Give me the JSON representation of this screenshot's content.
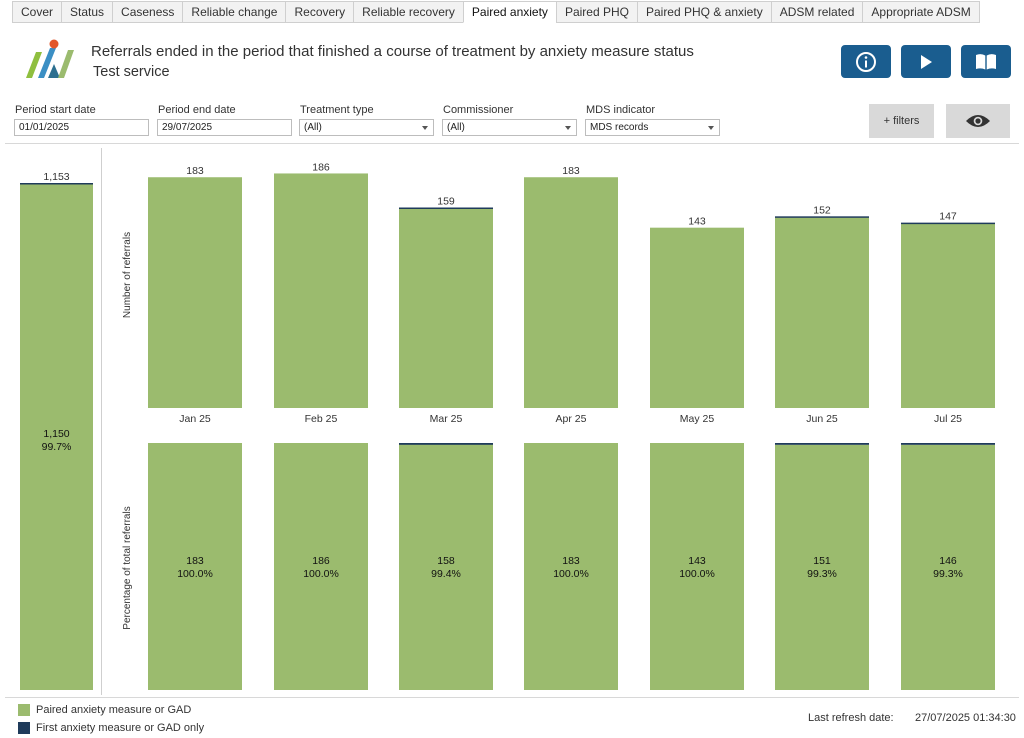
{
  "tabs": [
    {
      "label": "Cover",
      "active": false
    },
    {
      "label": "Status",
      "active": false
    },
    {
      "label": "Caseness",
      "active": false
    },
    {
      "label": "Reliable change",
      "active": false
    },
    {
      "label": "Recovery",
      "active": false
    },
    {
      "label": "Reliable recovery",
      "active": false
    },
    {
      "label": "Paired anxiety",
      "active": true
    },
    {
      "label": "Paired PHQ",
      "active": false
    },
    {
      "label": "Paired PHQ & anxiety",
      "active": false
    },
    {
      "label": "ADSM related",
      "active": false
    },
    {
      "label": "Appropriate ADSM",
      "active": false
    }
  ],
  "header": {
    "title": "Referrals ended in the period that finished a course of treatment by anxiety measure status",
    "subtitle": "Test service",
    "buttons": [
      "info-icon",
      "play-icon",
      "book-icon"
    ]
  },
  "filters": {
    "period_start": {
      "label": "Period start date",
      "value": "01/01/2025"
    },
    "period_end": {
      "label": "Period end date",
      "value": "29/07/2025"
    },
    "treatment_type": {
      "label": "Treatment type",
      "value": "(All)"
    },
    "commissioner": {
      "label": "Commissioner",
      "value": "(All)"
    },
    "mds_indicator": {
      "label": "MDS indicator",
      "value": "MDS records"
    },
    "more_filters_label": "+ filters",
    "toggle_icon": "eye-icon"
  },
  "colors": {
    "paired": "#9bbb6e",
    "first_only": "#1f3b5b"
  },
  "chart_data": {
    "total": {
      "type": "bar",
      "total_label": "1,153",
      "total": 1153,
      "paired": 1150,
      "paired_label": "1,150",
      "paired_pct": "99.7%"
    },
    "counts": {
      "type": "bar",
      "ylabel": "Number of referrals",
      "categories": [
        "Jan 25",
        "Feb 25",
        "Mar 25",
        "Apr 25",
        "May 25",
        "Jun 25",
        "Jul 25"
      ],
      "totals": [
        183,
        186,
        159,
        183,
        143,
        152,
        147
      ],
      "series": [
        {
          "name": "Paired anxiety measure or GAD",
          "values": [
            183,
            186,
            158,
            183,
            143,
            151,
            146
          ]
        },
        {
          "name": "First anxiety measure or GAD only",
          "values": [
            0,
            0,
            1,
            0,
            0,
            1,
            1
          ]
        }
      ]
    },
    "percent": {
      "type": "bar",
      "ylabel": "Percentage of total referrals",
      "categories": [
        "Jan 25",
        "Feb 25",
        "Mar 25",
        "Apr 25",
        "May 25",
        "Jun 25",
        "Jul 25"
      ],
      "paired_counts": [
        183,
        186,
        158,
        183,
        143,
        151,
        146
      ],
      "paired_pct": [
        "100.0%",
        "100.0%",
        "99.4%",
        "100.0%",
        "100.0%",
        "99.3%",
        "99.3%"
      ],
      "paired_pct_values": [
        100.0,
        100.0,
        99.4,
        100.0,
        100.0,
        99.3,
        99.3
      ]
    }
  },
  "legend": [
    {
      "label": "Paired anxiety measure or GAD",
      "color": "#9bbb6e"
    },
    {
      "label": "First anxiety measure or GAD only",
      "color": "#1f3b5b"
    }
  ],
  "footer": {
    "refresh_label": "Last refresh date:",
    "refresh_value": "27/07/2025 01:34:30"
  }
}
